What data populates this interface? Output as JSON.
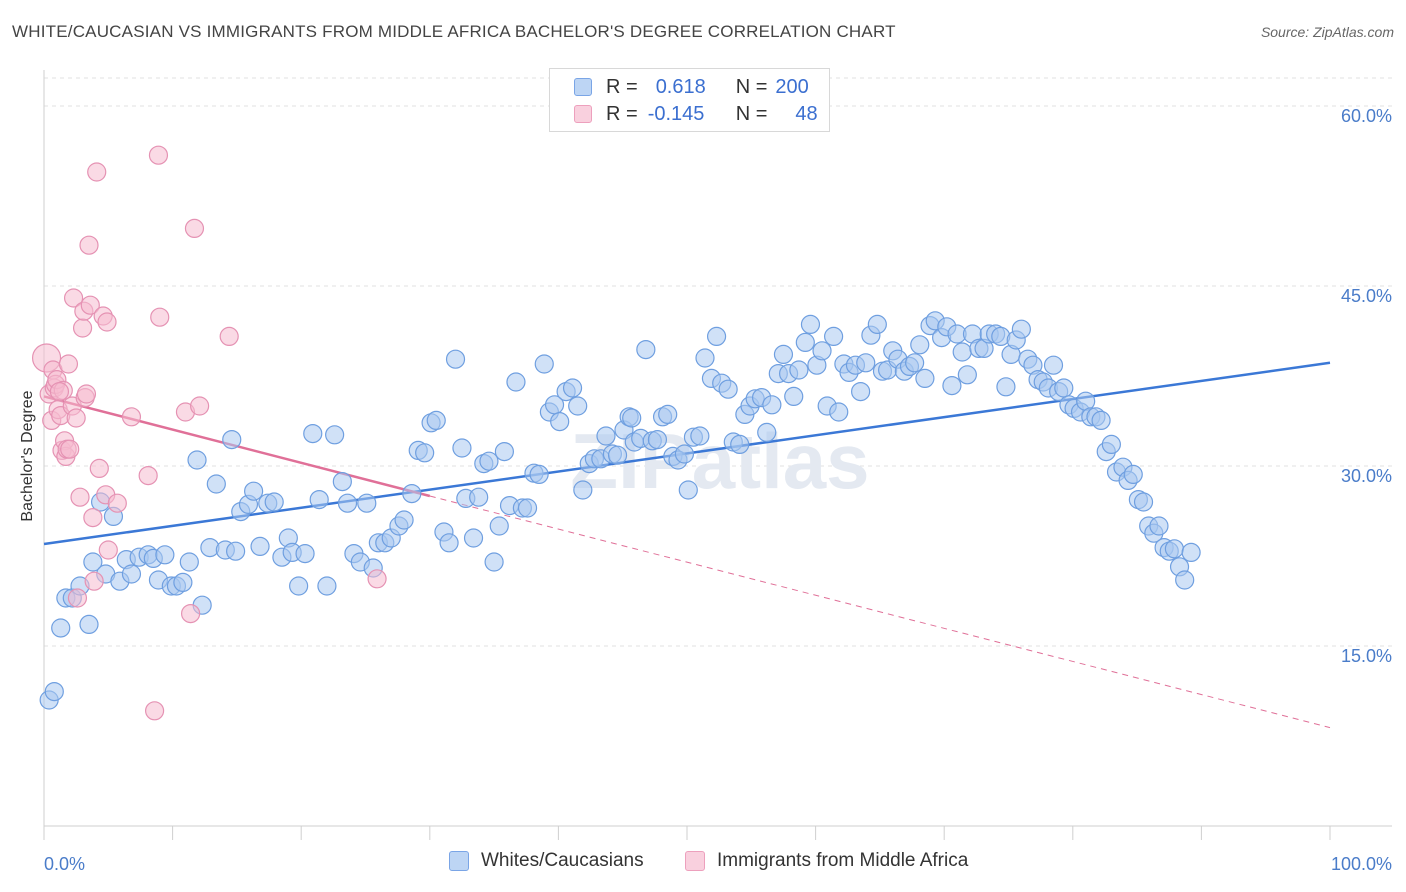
{
  "title": "WHITE/CAUCASIAN VS IMMIGRANTS FROM MIDDLE AFRICA BACHELOR'S DEGREE CORRELATION CHART",
  "source": "Source: ZipAtlas.com",
  "watermark": "ZIPatlas",
  "colors": {
    "blue": "#3b78d6",
    "blue_fill": "#a9c8f0",
    "pink": "#e07098",
    "pink_fill": "#f5bcd0",
    "tick_text": "#4a7cc9",
    "grid": "#e2e2e2"
  },
  "legend": {
    "rows": [
      {
        "r_label": "R =",
        "r_value": "0.618",
        "n_label": "N =",
        "n_value": "200"
      },
      {
        "r_label": "R =",
        "r_value": "-0.145",
        "n_label": "N =",
        "n_value": "48"
      }
    ]
  },
  "bottom_legend": {
    "series1": "Whites/Caucasians",
    "series2": "Immigrants from Middle Africa"
  },
  "chart_data": {
    "type": "scatter",
    "title": "WHITE/CAUCASIAN VS IMMIGRANTS FROM MIDDLE AFRICA BACHELOR'S DEGREE CORRELATION CHART",
    "xlabel": "",
    "ylabel": "Bachelor's Degree",
    "xlim": [
      0,
      100
    ],
    "ylim": [
      0,
      62
    ],
    "x_tick_labels": [
      "0.0%",
      "100.0%"
    ],
    "y_ticks": [
      15,
      30,
      45,
      60
    ],
    "y_tick_labels": [
      "15.0%",
      "30.0%",
      "45.0%",
      "60.0%"
    ],
    "grid": true,
    "legend_position": "top-center",
    "series": [
      {
        "name": "Whites/Caucasians",
        "color": "#3b78d6",
        "trend": {
          "x": [
            0,
            100
          ],
          "y": [
            23.5,
            38.6
          ],
          "style": "solid"
        },
        "points": [
          [
            0.4,
            10.5
          ],
          [
            0.8,
            11.2
          ],
          [
            1.3,
            16.5
          ],
          [
            1.7,
            19.0
          ],
          [
            2.2,
            19.0
          ],
          [
            2.8,
            20.0
          ],
          [
            3.5,
            16.8
          ],
          [
            3.8,
            22.0
          ],
          [
            4.4,
            27.0
          ],
          [
            4.8,
            21.0
          ],
          [
            5.4,
            25.8
          ],
          [
            5.9,
            20.4
          ],
          [
            6.4,
            22.2
          ],
          [
            6.8,
            21.0
          ],
          [
            7.4,
            22.4
          ],
          [
            8.1,
            22.6
          ],
          [
            8.5,
            22.3
          ],
          [
            8.9,
            20.5
          ],
          [
            9.4,
            22.6
          ],
          [
            9.9,
            20.0
          ],
          [
            10.3,
            20.0
          ],
          [
            10.8,
            20.3
          ],
          [
            11.3,
            22.0
          ],
          [
            11.9,
            30.5
          ],
          [
            12.3,
            18.4
          ],
          [
            12.9,
            23.2
          ],
          [
            13.4,
            28.5
          ],
          [
            14.1,
            23.0
          ],
          [
            14.6,
            32.2
          ],
          [
            14.9,
            22.9
          ],
          [
            15.3,
            26.2
          ],
          [
            15.9,
            26.8
          ],
          [
            16.3,
            27.9
          ],
          [
            16.8,
            23.3
          ],
          [
            17.4,
            26.9
          ],
          [
            17.9,
            27.0
          ],
          [
            18.5,
            22.4
          ],
          [
            19.0,
            24.0
          ],
          [
            19.3,
            22.8
          ],
          [
            19.8,
            20.0
          ],
          [
            20.3,
            22.7
          ],
          [
            20.9,
            32.7
          ],
          [
            21.4,
            27.2
          ],
          [
            22.0,
            20.0
          ],
          [
            22.6,
            32.6
          ],
          [
            23.2,
            28.7
          ],
          [
            23.6,
            26.9
          ],
          [
            24.1,
            22.7
          ],
          [
            24.6,
            22.0
          ],
          [
            25.1,
            26.9
          ],
          [
            25.6,
            21.5
          ],
          [
            26.0,
            23.6
          ],
          [
            26.5,
            23.6
          ],
          [
            27.0,
            24.0
          ],
          [
            27.6,
            25.0
          ],
          [
            28.0,
            25.5
          ],
          [
            28.6,
            27.7
          ],
          [
            29.1,
            31.3
          ],
          [
            29.6,
            31.1
          ],
          [
            30.1,
            33.6
          ],
          [
            30.5,
            33.8
          ],
          [
            31.1,
            24.5
          ],
          [
            31.5,
            23.6
          ],
          [
            32.0,
            38.9
          ],
          [
            32.5,
            31.5
          ],
          [
            32.8,
            27.3
          ],
          [
            33.4,
            24.0
          ],
          [
            33.8,
            27.4
          ],
          [
            34.2,
            30.2
          ],
          [
            34.6,
            30.4
          ],
          [
            35.0,
            22.0
          ],
          [
            35.4,
            25.0
          ],
          [
            35.8,
            31.2
          ],
          [
            36.2,
            26.7
          ],
          [
            36.7,
            37.0
          ],
          [
            37.2,
            26.5
          ],
          [
            37.6,
            26.5
          ],
          [
            38.1,
            29.4
          ],
          [
            38.5,
            29.3
          ],
          [
            38.9,
            38.5
          ],
          [
            39.3,
            34.5
          ],
          [
            39.7,
            35.1
          ],
          [
            40.1,
            33.7
          ],
          [
            40.6,
            36.2
          ],
          [
            41.1,
            36.5
          ],
          [
            41.5,
            35.0
          ],
          [
            41.9,
            28.0
          ],
          [
            42.4,
            30.2
          ],
          [
            42.8,
            30.6
          ],
          [
            43.3,
            30.6
          ],
          [
            43.7,
            32.5
          ],
          [
            44.2,
            31.0
          ],
          [
            44.6,
            30.9
          ],
          [
            45.1,
            33.0
          ],
          [
            45.5,
            34.1
          ],
          [
            45.9,
            32.0
          ],
          [
            46.4,
            32.3
          ],
          [
            46.8,
            39.7
          ],
          [
            47.3,
            32.1
          ],
          [
            47.7,
            32.2
          ],
          [
            48.1,
            34.1
          ],
          [
            48.5,
            34.3
          ],
          [
            48.9,
            30.8
          ],
          [
            49.3,
            30.5
          ],
          [
            49.8,
            31.0
          ],
          [
            50.1,
            28.0
          ],
          [
            50.5,
            32.4
          ],
          [
            51.0,
            32.5
          ],
          [
            51.4,
            39.0
          ],
          [
            51.9,
            37.3
          ],
          [
            52.3,
            40.8
          ],
          [
            52.7,
            36.9
          ],
          [
            53.2,
            36.4
          ],
          [
            53.6,
            32.0
          ],
          [
            54.1,
            31.8
          ],
          [
            54.5,
            34.3
          ],
          [
            54.9,
            35.0
          ],
          [
            55.3,
            35.6
          ],
          [
            55.8,
            35.7
          ],
          [
            56.2,
            32.8
          ],
          [
            56.6,
            35.1
          ],
          [
            57.1,
            37.7
          ],
          [
            57.5,
            39.3
          ],
          [
            57.9,
            37.7
          ],
          [
            58.3,
            35.8
          ],
          [
            58.7,
            38.0
          ],
          [
            59.2,
            40.3
          ],
          [
            59.6,
            41.8
          ],
          [
            60.1,
            38.4
          ],
          [
            60.5,
            39.6
          ],
          [
            60.9,
            35.0
          ],
          [
            61.4,
            40.8
          ],
          [
            61.8,
            34.5
          ],
          [
            62.2,
            38.5
          ],
          [
            62.6,
            37.8
          ],
          [
            63.1,
            38.4
          ],
          [
            63.5,
            36.2
          ],
          [
            63.9,
            38.6
          ],
          [
            64.3,
            40.9
          ],
          [
            64.8,
            41.8
          ],
          [
            65.2,
            37.9
          ],
          [
            65.6,
            38.0
          ],
          [
            66.0,
            39.6
          ],
          [
            66.4,
            38.9
          ],
          [
            66.9,
            37.9
          ],
          [
            67.3,
            38.3
          ],
          [
            67.7,
            38.6
          ],
          [
            68.1,
            40.1
          ],
          [
            68.5,
            37.3
          ],
          [
            68.9,
            41.7
          ],
          [
            69.3,
            42.1
          ],
          [
            69.8,
            40.7
          ],
          [
            70.2,
            41.6
          ],
          [
            70.6,
            36.7
          ],
          [
            71.0,
            41.0
          ],
          [
            71.4,
            39.5
          ],
          [
            71.8,
            37.6
          ],
          [
            72.2,
            41.0
          ],
          [
            72.7,
            39.8
          ],
          [
            73.1,
            39.8
          ],
          [
            73.5,
            41.0
          ],
          [
            74.0,
            41.0
          ],
          [
            74.4,
            40.8
          ],
          [
            74.8,
            36.6
          ],
          [
            75.2,
            39.3
          ],
          [
            75.6,
            40.5
          ],
          [
            76.0,
            41.4
          ],
          [
            76.5,
            38.9
          ],
          [
            76.9,
            38.4
          ],
          [
            77.3,
            37.2
          ],
          [
            77.7,
            37.0
          ],
          [
            78.1,
            36.5
          ],
          [
            78.5,
            38.4
          ],
          [
            78.9,
            36.2
          ],
          [
            79.3,
            36.5
          ],
          [
            79.7,
            35.1
          ],
          [
            80.1,
            34.8
          ],
          [
            80.6,
            34.5
          ],
          [
            81.0,
            35.4
          ],
          [
            81.4,
            34.1
          ],
          [
            81.8,
            34.1
          ],
          [
            82.2,
            33.8
          ],
          [
            82.6,
            31.2
          ],
          [
            83.0,
            31.8
          ],
          [
            83.4,
            29.5
          ],
          [
            83.9,
            29.9
          ],
          [
            84.3,
            28.8
          ],
          [
            84.7,
            29.3
          ],
          [
            85.1,
            27.2
          ],
          [
            85.5,
            27.0
          ],
          [
            85.9,
            25.0
          ],
          [
            86.3,
            24.4
          ],
          [
            86.7,
            25.0
          ],
          [
            87.1,
            23.2
          ],
          [
            87.5,
            22.9
          ],
          [
            87.9,
            23.1
          ],
          [
            88.3,
            21.6
          ],
          [
            88.7,
            20.5
          ],
          [
            89.2,
            22.8
          ],
          [
            45.7,
            34.0
          ]
        ]
      },
      {
        "name": "Immigrants from Middle Africa",
        "color": "#e07098",
        "trend": {
          "x": [
            0,
            30
          ],
          "y": [
            35.8,
            27.5
          ],
          "style": "solid",
          "extended": {
            "x": [
              30,
              100
            ],
            "y": [
              27.5,
              8.2
            ],
            "style": "dashed"
          }
        },
        "points": [
          [
            0.2,
            39.0
          ],
          [
            0.4,
            36.0
          ],
          [
            0.6,
            33.8
          ],
          [
            0.7,
            38.0
          ],
          [
            0.8,
            36.5
          ],
          [
            0.9,
            36.8
          ],
          [
            1.0,
            37.2
          ],
          [
            1.1,
            34.7
          ],
          [
            1.3,
            34.2
          ],
          [
            1.4,
            31.3
          ],
          [
            1.5,
            36.3
          ],
          [
            1.6,
            32.1
          ],
          [
            1.7,
            30.8
          ],
          [
            1.8,
            31.4
          ],
          [
            1.9,
            38.5
          ],
          [
            2.0,
            31.4
          ],
          [
            2.2,
            35.0
          ],
          [
            2.3,
            44.0
          ],
          [
            2.5,
            34.0
          ],
          [
            2.6,
            19.0
          ],
          [
            2.8,
            27.4
          ],
          [
            3.0,
            41.5
          ],
          [
            3.1,
            42.9
          ],
          [
            3.2,
            35.7
          ],
          [
            3.3,
            36.0
          ],
          [
            3.5,
            48.4
          ],
          [
            3.6,
            43.4
          ],
          [
            3.8,
            25.7
          ],
          [
            4.1,
            54.5
          ],
          [
            4.3,
            29.8
          ],
          [
            4.6,
            42.5
          ],
          [
            4.9,
            42.0
          ],
          [
            4.8,
            27.6
          ],
          [
            5.0,
            23.0
          ],
          [
            5.7,
            26.9
          ],
          [
            6.8,
            34.1
          ],
          [
            8.1,
            29.2
          ],
          [
            8.6,
            9.6
          ],
          [
            8.9,
            55.9
          ],
          [
            9.0,
            42.4
          ],
          [
            11.0,
            34.5
          ],
          [
            11.4,
            17.7
          ],
          [
            11.7,
            49.8
          ],
          [
            12.1,
            35.0
          ],
          [
            14.4,
            40.8
          ],
          [
            25.9,
            20.6
          ],
          [
            3.9,
            20.4
          ],
          [
            1.2,
            36.2
          ]
        ]
      }
    ]
  }
}
